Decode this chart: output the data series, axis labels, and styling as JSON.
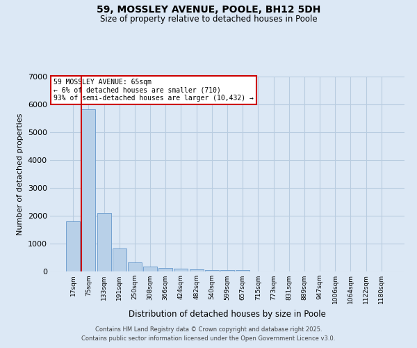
{
  "title": "59, MOSSLEY AVENUE, POOLE, BH12 5DH",
  "subtitle": "Size of property relative to detached houses in Poole",
  "xlabel": "Distribution of detached houses by size in Poole",
  "ylabel": "Number of detached properties",
  "bar_labels": [
    "17sqm",
    "75sqm",
    "133sqm",
    "191sqm",
    "250sqm",
    "308sqm",
    "366sqm",
    "424sqm",
    "482sqm",
    "540sqm",
    "599sqm",
    "657sqm",
    "715sqm",
    "773sqm",
    "831sqm",
    "889sqm",
    "947sqm",
    "1006sqm",
    "1064sqm",
    "1122sqm",
    "1180sqm"
  ],
  "bar_values": [
    1800,
    5820,
    2090,
    820,
    330,
    175,
    120,
    100,
    75,
    60,
    60,
    55,
    10,
    5,
    5,
    3,
    3,
    2,
    2,
    2,
    0
  ],
  "bar_color": "#b8d0e8",
  "bar_edge_color": "#6699cc",
  "background_color": "#dce8f5",
  "grid_color": "#b8cce0",
  "annotation_text": "59 MOSSLEY AVENUE: 65sqm\n← 6% of detached houses are smaller (710)\n93% of semi-detached houses are larger (10,432) →",
  "annotation_box_color": "#ffffff",
  "annotation_border_color": "#cc0000",
  "property_line_color": "#cc0000",
  "ylim": [
    0,
    7000
  ],
  "yticks": [
    0,
    1000,
    2000,
    3000,
    4000,
    5000,
    6000,
    7000
  ],
  "footer_line1": "Contains HM Land Registry data © Crown copyright and database right 2025.",
  "footer_line2": "Contains public sector information licensed under the Open Government Licence v3.0."
}
